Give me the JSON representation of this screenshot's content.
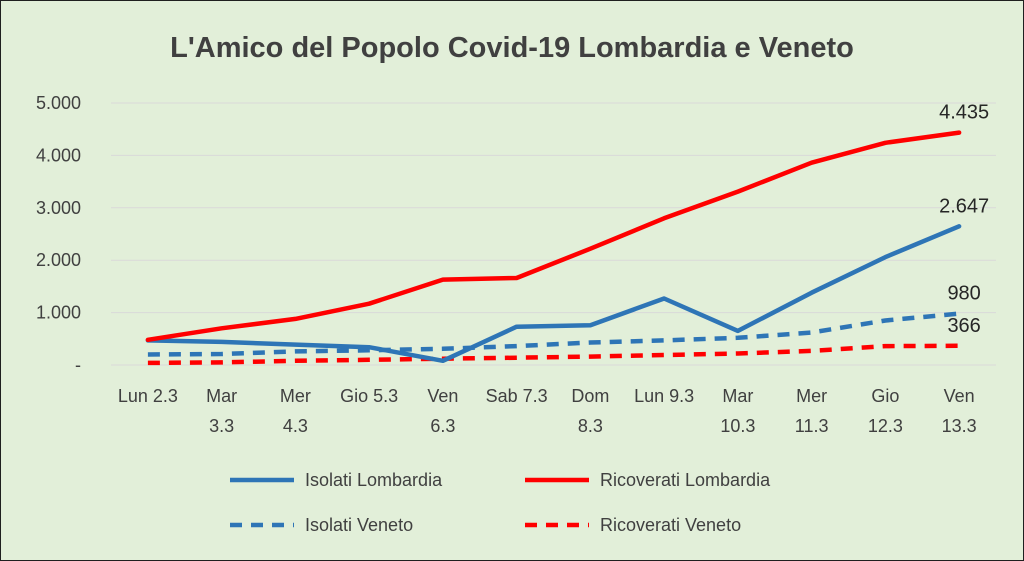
{
  "chart_data": {
    "type": "line",
    "title": "L'Amico del Popolo Covid-19 Lombardia e Veneto",
    "categories": [
      [
        "Lun 2.3"
      ],
      [
        "Mar",
        "3.3"
      ],
      [
        "Mer",
        "4.3"
      ],
      [
        "Gio 5.3"
      ],
      [
        "Ven",
        "6.3"
      ],
      [
        "Sab 7.3"
      ],
      [
        "Dom",
        "8.3"
      ],
      [
        "Lun 9.3"
      ],
      [
        "Mar",
        "10.3"
      ],
      [
        "Mer",
        "11.3"
      ],
      [
        "Gio",
        "12.3"
      ],
      [
        "Ven",
        "13.3"
      ]
    ],
    "ylim": [
      0,
      5000
    ],
    "y_ticks": [
      {
        "value": 0,
        "label": "-"
      },
      {
        "value": 1000,
        "label": "1.000"
      },
      {
        "value": 2000,
        "label": "2.000"
      },
      {
        "value": 3000,
        "label": "3.000"
      },
      {
        "value": 4000,
        "label": "4.000"
      },
      {
        "value": 5000,
        "label": "5.000"
      }
    ],
    "grid": true,
    "legend_position": "bottom",
    "series": [
      {
        "name": "Isolati Lombardia",
        "color": "#2e75b6",
        "style": "solid",
        "values": [
          470,
          440,
          390,
          340,
          80,
          730,
          760,
          1270,
          650,
          1380,
          2060,
          2647
        ],
        "end_label": "2.647"
      },
      {
        "name": "Ricoverati Lombardia",
        "color": "#ff0000",
        "style": "solid",
        "values": [
          480,
          700,
          880,
          1170,
          1630,
          1660,
          2220,
          2800,
          3310,
          3860,
          4240,
          4435
        ],
        "end_label": "4.435"
      },
      {
        "name": "Isolati Veneto",
        "color": "#2e75b6",
        "style": "dashed",
        "values": [
          200,
          210,
          260,
          280,
          310,
          360,
          430,
          470,
          520,
          620,
          850,
          980
        ],
        "end_label": "980"
      },
      {
        "name": "Ricoverati Veneto",
        "color": "#ff0000",
        "style": "dashed",
        "values": [
          40,
          50,
          80,
          100,
          120,
          140,
          160,
          190,
          220,
          270,
          360,
          366
        ],
        "end_label": "366"
      }
    ]
  }
}
